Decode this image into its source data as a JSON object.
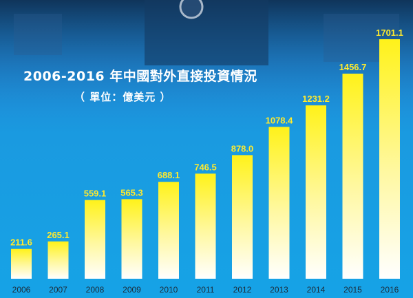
{
  "chart_data": {
    "type": "bar",
    "title": "2006-2016 年中國對外直接投資情況",
    "subtitle": "（ 單位：億美元 ）",
    "categories": [
      "2006",
      "2007",
      "2008",
      "2009",
      "2010",
      "2011",
      "2012",
      "2013",
      "2014",
      "2015",
      "2016"
    ],
    "values": [
      211.6,
      265.1,
      559.1,
      565.3,
      688.1,
      746.5,
      878.0,
      1078.4,
      1231.2,
      1456.7,
      1701.1
    ],
    "value_labels": [
      "211.6",
      "265.1",
      "559.1",
      "565.3",
      "688.1",
      "746.5",
      "878.0",
      "1078.4",
      "1231.2",
      "1456.7",
      "1701.1"
    ],
    "ylim": [
      0,
      1701.1
    ],
    "grid": false,
    "colors": {
      "bar_top": "#fff21a",
      "bar_bottom": "#ffffff",
      "label": "#ffea2e",
      "background": "#1a9ae0"
    }
  }
}
